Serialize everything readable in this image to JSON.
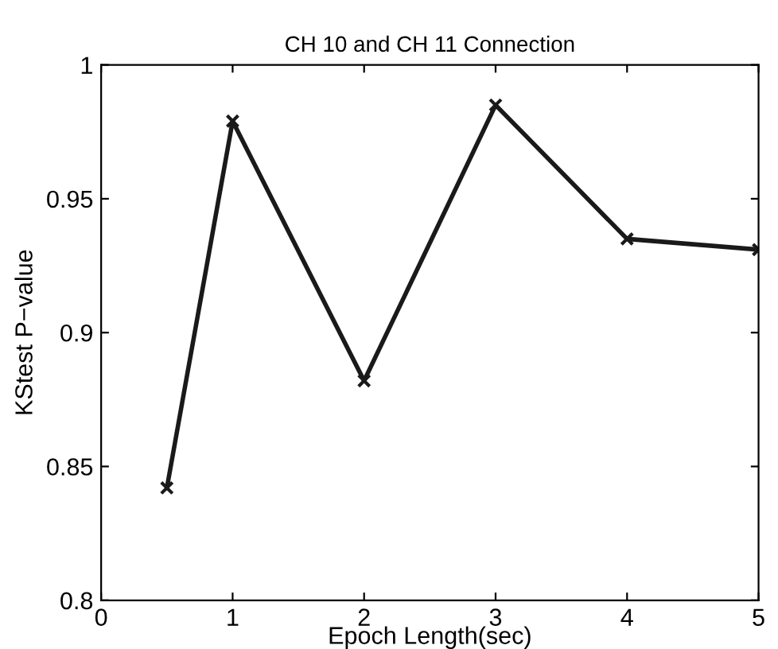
{
  "chart_data": {
    "type": "line",
    "title": "CH 10 and CH 11 Connection",
    "xlabel": "Epoch Length(sec)",
    "ylabel": "KStest P−value",
    "x": [
      0.5,
      1,
      2,
      3,
      4,
      5
    ],
    "series": [
      {
        "color": "#1a1a1a",
        "values": [
          0.842,
          0.979,
          0.882,
          0.985,
          0.935,
          0.931
        ]
      }
    ],
    "xlim": [
      0,
      5
    ],
    "ylim": [
      0.8,
      1
    ],
    "xticks": [
      0,
      1,
      2,
      3,
      4,
      5
    ],
    "yticks": [
      0.8,
      0.85,
      0.9,
      0.95,
      1
    ],
    "grid": false,
    "legend": false,
    "marker": "cross",
    "line_style": "solid"
  }
}
